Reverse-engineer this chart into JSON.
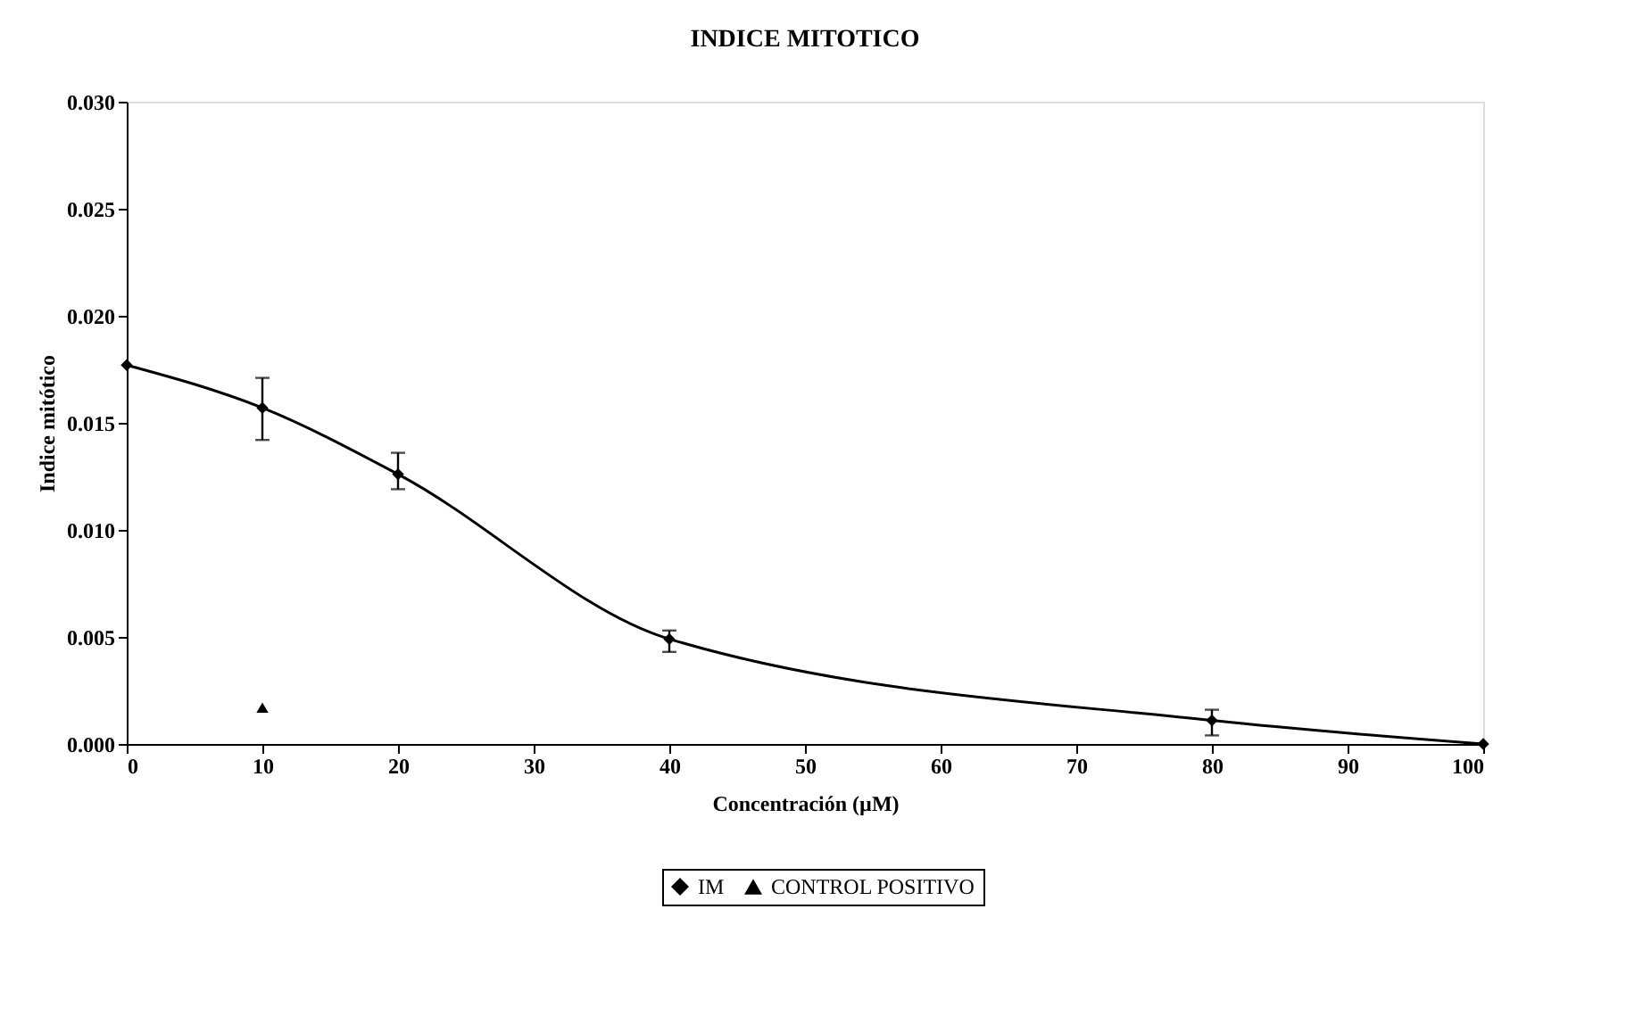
{
  "chart_data": {
    "type": "line",
    "title": "INDICE MITOTICO",
    "xlabel": "Concentración (µM)",
    "ylabel": "Indice mitótico",
    "xlim": [
      0,
      100
    ],
    "xticks": [
      0,
      10,
      20,
      30,
      40,
      50,
      60,
      70,
      80,
      90,
      100
    ],
    "ylim": [
      0,
      0.03
    ],
    "yticks": [
      {
        "value": 0,
        "label": "0.000"
      },
      {
        "value": 0.005,
        "label": "0.005"
      },
      {
        "value": 0.01,
        "label": "0.010"
      },
      {
        "value": 0.015,
        "label": "0.015"
      },
      {
        "value": 0.02,
        "label": "0.020"
      },
      {
        "value": 0.025,
        "label": "0.025"
      },
      {
        "value": 0.03,
        "label": "0.030"
      }
    ],
    "series": [
      {
        "name": "IM",
        "color": "#000000",
        "marker": "diamond",
        "x": [
          0,
          10,
          20,
          40,
          80,
          100
        ],
        "values": [
          0.0177,
          0.0157,
          0.0126,
          0.0049,
          0.0011,
          0.0
        ],
        "errors": [
          null,
          [
            0.0142,
            0.0171
          ],
          [
            0.0119,
            0.0136
          ],
          [
            0.0043,
            0.0053
          ],
          [
            0.0004,
            0.0016
          ],
          null
        ]
      },
      {
        "name": "CONTROL POSITIVO",
        "color": "#000000",
        "type": "scatter",
        "marker": "triangle",
        "x": [
          10
        ],
        "values": [
          0.0017
        ]
      }
    ],
    "legend": "bottom",
    "grid": false,
    "line_style": "solid"
  }
}
